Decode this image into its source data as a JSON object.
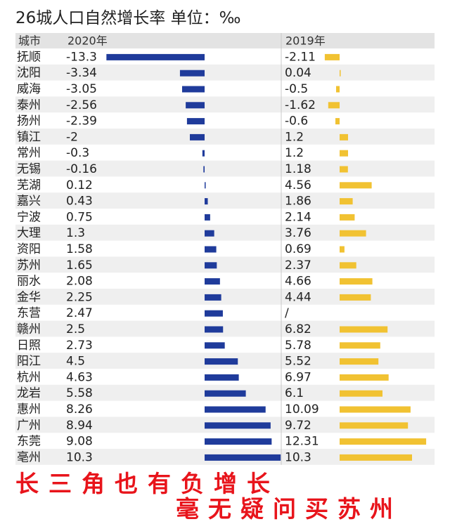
{
  "title": "26城人口自然增长率 单位：‰",
  "captions": {
    "line1": "长三角也有负增长",
    "line2": "毫无疑问买苏州"
  },
  "colors": {
    "series_2020": "#1f3b9b",
    "series_2019": "#f1c232",
    "header_bg": "#e3e3e3",
    "row_alt_bg": "#efefef",
    "caption": "#e8141b"
  },
  "chart_data": {
    "type": "bar",
    "title": "26城人口自然增长率 单位：‰",
    "header_city": "城市",
    "categories": [
      "抚顺",
      "沈阳",
      "威海",
      "泰州",
      "扬州",
      "镇江",
      "常州",
      "无锡",
      "芜湖",
      "嘉兴",
      "宁波",
      "大理",
      "资阳",
      "苏州",
      "丽水",
      "金华",
      "东营",
      "赣州",
      "日照",
      "阳江",
      "杭州",
      "龙岩",
      "惠州",
      "广州",
      "东莞",
      "亳州"
    ],
    "series": [
      {
        "name": "2020年",
        "labels": [
          "-13.3",
          "-3.34",
          "-3.05",
          "-2.56",
          "-2.39",
          "-2",
          "-0.3",
          "-0.16",
          "0.12",
          "0.43",
          "0.75",
          "1.3",
          "1.58",
          "1.65",
          "2.08",
          "2.25",
          "2.47",
          "2.5",
          "2.73",
          "4.5",
          "4.63",
          "5.58",
          "8.26",
          "8.94",
          "9.08",
          "10.3"
        ],
        "values": [
          -13.3,
          -3.34,
          -3.05,
          -2.56,
          -2.39,
          -2,
          -0.3,
          -0.16,
          0.12,
          0.43,
          0.75,
          1.3,
          1.58,
          1.65,
          2.08,
          2.25,
          2.47,
          2.5,
          2.73,
          4.5,
          4.63,
          5.58,
          8.26,
          8.94,
          9.08,
          10.3
        ]
      },
      {
        "name": "2019年",
        "labels": [
          "-2.11",
          "0.04",
          "-0.5",
          "-1.62",
          "-0.6",
          "1.2",
          "1.2",
          "1.18",
          "4.56",
          "1.86",
          "2.14",
          "3.76",
          "0.69",
          "2.37",
          "4.66",
          "4.44",
          "/",
          "6.82",
          "5.78",
          "5.52",
          "6.97",
          "6.1",
          "10.09",
          "9.72",
          "12.31",
          "10.3"
        ],
        "values": [
          -2.11,
          0.04,
          -0.5,
          -1.62,
          -0.6,
          1.2,
          1.2,
          1.18,
          4.56,
          1.86,
          2.14,
          3.76,
          0.69,
          2.37,
          4.66,
          4.44,
          null,
          6.82,
          5.78,
          5.52,
          6.97,
          6.1,
          10.09,
          9.72,
          12.31,
          10.3
        ]
      }
    ],
    "orientation": "horizontal",
    "grid": false
  }
}
